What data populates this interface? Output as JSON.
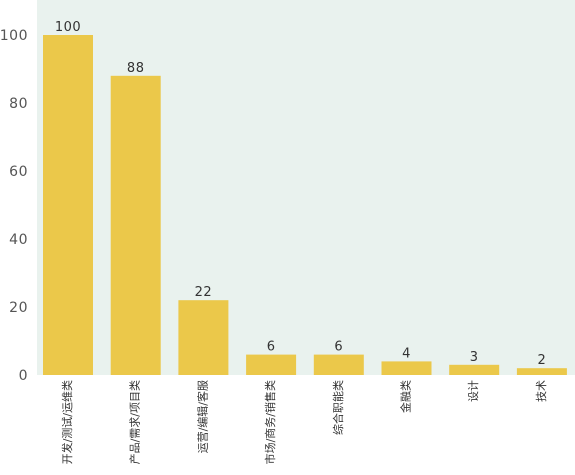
{
  "chart_data": {
    "type": "bar",
    "categories": [
      "开发/测试/运维类",
      "产品/需求/项目类",
      "运营/编辑/客服",
      "市场/商务/销售类",
      "综合职能类",
      "金融类",
      "设计",
      "技术"
    ],
    "values": [
      100,
      88,
      22,
      6,
      6,
      4,
      3,
      2
    ],
    "yticks": [
      0,
      20,
      40,
      60,
      80,
      100
    ],
    "ylim": [
      0,
      100
    ],
    "grid": false,
    "colors": {
      "bar": "#ebc84a",
      "plot_background": "#e9f2ee",
      "page_background": "#ffffff"
    }
  }
}
